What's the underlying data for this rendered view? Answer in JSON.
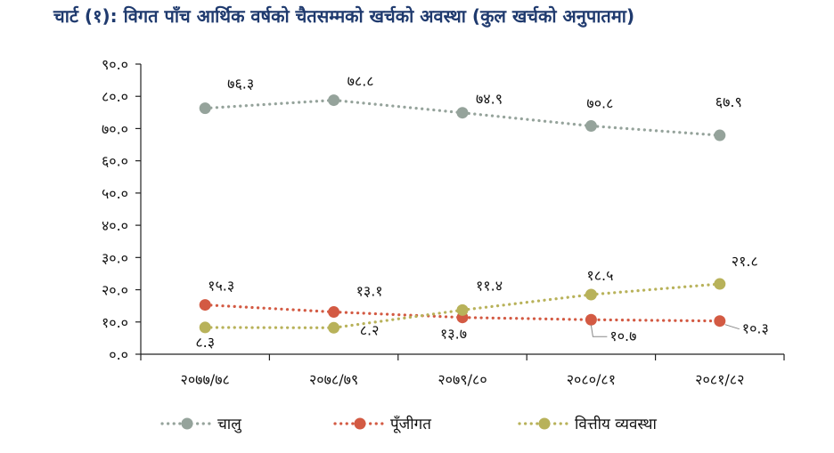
{
  "chart_data": {
    "type": "line",
    "title": "चार्ट (१): विगत पाँच आर्थिक वर्षको चैतसम्मको खर्चको अवस्था (कुल खर्चको अनुपातमा)",
    "categories": [
      "२०७७/७८",
      "२०७८/७९",
      "२०७९/८०",
      "२०८०/८१",
      "२०८१/८२"
    ],
    "ylim": [
      0,
      90
    ],
    "yticks": [
      "०.०",
      "१०.०",
      "२०.०",
      "३०.०",
      "४०.०",
      "५०.०",
      "६०.०",
      "७०.०",
      "८०.०",
      "९०.०"
    ],
    "grid": false,
    "legend_position": "bottom",
    "series": [
      {
        "name": "चालु",
        "color": "#95a39b",
        "values": [
          76.3,
          78.8,
          74.9,
          70.8,
          67.9
        ],
        "labels": [
          "७६.३",
          "७८.८",
          "७४.९",
          "७०.८",
          "६७.९"
        ]
      },
      {
        "name": "पूँजीगत",
        "color": "#d35a43",
        "values": [
          15.3,
          13.1,
          11.4,
          10.7,
          10.3
        ],
        "labels": [
          "१५.३",
          "१३.१",
          "११.४",
          "१०.७",
          "१०.३"
        ]
      },
      {
        "name": "वित्तीय व्यवस्था",
        "color": "#b8b25a",
        "values": [
          8.3,
          8.2,
          13.7,
          18.5,
          21.8
        ],
        "labels": [
          "८.३",
          "८.२",
          "१३.७",
          "१८.५",
          "२१.८"
        ]
      }
    ]
  }
}
